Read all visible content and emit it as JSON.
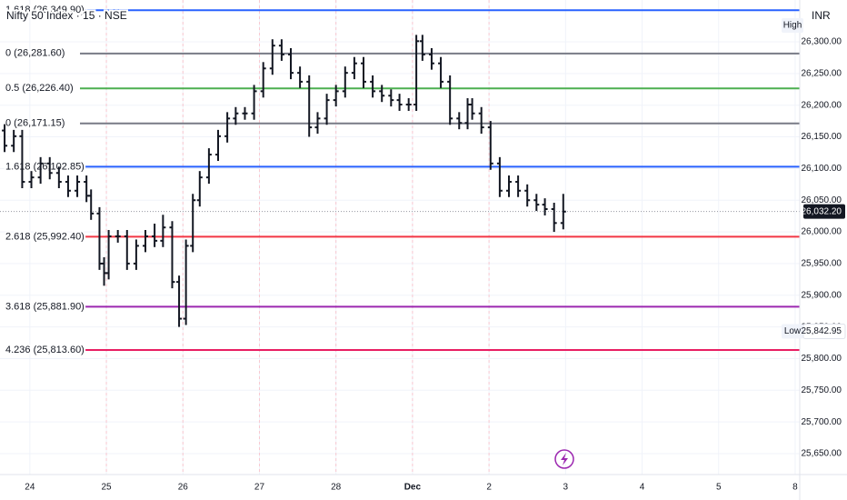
{
  "chart_data": {
    "type": "ohlc",
    "title": "Nifty 50 Index · 15 · NSE",
    "currency": "INR",
    "color": "#131722",
    "xlim": [
      -0.39,
      10.06
    ],
    "xticks": [
      {
        "value": 0,
        "label": "24"
      },
      {
        "value": 1,
        "label": "25"
      },
      {
        "value": 2,
        "label": "26"
      },
      {
        "value": 3,
        "label": "27"
      },
      {
        "value": 4,
        "label": "28"
      },
      {
        "value": 5,
        "label": "Dec"
      },
      {
        "value": 6,
        "label": "2"
      },
      {
        "value": 7,
        "label": "3"
      },
      {
        "value": 8,
        "label": "4"
      },
      {
        "value": 9,
        "label": "5"
      },
      {
        "value": 10,
        "label": "8"
      }
    ],
    "ylim": [
      25617,
      26366
    ],
    "yticks": [
      {
        "value": 26300,
        "label": "26,300.00"
      },
      {
        "value": 26250,
        "label": "26,250.00"
      },
      {
        "value": 26200,
        "label": "26,200.00"
      },
      {
        "value": 26150,
        "label": "26,150.00"
      },
      {
        "value": 26100,
        "label": "26,100.00"
      },
      {
        "value": 26050,
        "label": "26,050.00"
      },
      {
        "value": 26000,
        "label": "26,000.00"
      },
      {
        "value": 25950,
        "label": "25,950.00"
      },
      {
        "value": 25900,
        "label": "25,900.00"
      },
      {
        "value": 25850,
        "label": "25,850.00"
      },
      {
        "value": 25800,
        "label": "25,800.00"
      },
      {
        "value": 25750,
        "label": "25,750.00"
      },
      {
        "value": 25700,
        "label": "25,700.00"
      },
      {
        "value": 25650,
        "label": "25,650.00"
      }
    ],
    "grid": true,
    "session_lines": [
      1,
      2,
      3,
      4,
      5,
      6
    ],
    "x": [
      -0.33,
      -0.21,
      -0.1,
      0.02,
      0.14,
      0.26,
      0.38,
      0.5,
      0.62,
      0.74,
      0.8,
      0.91,
      0.97,
      1.03,
      1.15,
      1.27,
      1.39,
      1.51,
      1.63,
      1.74,
      1.86,
      1.95,
      2.04,
      2.13,
      2.22,
      2.34,
      2.46,
      2.58,
      2.69,
      2.81,
      2.93,
      3.05,
      3.17,
      3.29,
      3.41,
      3.53,
      3.65,
      3.76,
      3.88,
      4.0,
      4.12,
      4.24,
      4.36,
      4.48,
      4.6,
      4.72,
      4.83,
      4.95,
      5.05,
      5.13,
      5.25,
      5.37,
      5.49,
      5.61,
      5.72,
      5.78,
      5.9,
      6.02,
      6.14,
      6.26,
      6.38,
      6.5,
      6.62,
      6.73,
      6.85,
      6.97
    ],
    "open": [
      26160,
      26136,
      26151,
      26079,
      26086,
      26108,
      26093,
      26079,
      26065,
      26079,
      26057,
      26029,
      25950,
      25935,
      25993,
      25993,
      25950,
      25978,
      25993,
      25986,
      26007,
      25921,
      25863,
      25978,
      26050,
      26086,
      26122,
      26151,
      26179,
      26187,
      26187,
      26222,
      26258,
      26294,
      26280,
      26251,
      26237,
      26165,
      26179,
      26208,
      26222,
      26251,
      26266,
      26237,
      26222,
      26215,
      26208,
      26201,
      26201,
      26301,
      26280,
      26266,
      26237,
      26179,
      26172,
      26201,
      26187,
      26165,
      26108,
      26065,
      26079,
      26065,
      26050,
      26043,
      26036,
      26014
    ],
    "high": [
      26170,
      26161,
      26161,
      26096,
      26118,
      26118,
      26103,
      26089,
      26089,
      26089,
      26067,
      26039,
      25960,
      26003,
      26003,
      26003,
      25988,
      26003,
      26013,
      26027,
      26017,
      25931,
      25988,
      26060,
      26096,
      26132,
      26161,
      26189,
      26197,
      26197,
      26232,
      26268,
      26304,
      26304,
      26290,
      26261,
      26247,
      26189,
      26218,
      26232,
      26261,
      26276,
      26276,
      26247,
      26232,
      26225,
      26218,
      26211,
      26311,
      26311,
      26290,
      26276,
      26247,
      26189,
      26211,
      26211,
      26197,
      26175,
      26118,
      26089,
      26089,
      26075,
      26060,
      26053,
      26046,
      26060
    ],
    "low": [
      26126,
      26126,
      26069,
      26069,
      26076,
      26083,
      26069,
      26055,
      26055,
      26047,
      26019,
      25940,
      25915,
      25925,
      25983,
      25940,
      25940,
      25968,
      25976,
      25976,
      25911,
      25850,
      25853,
      25968,
      26040,
      26076,
      26112,
      26141,
      26169,
      26177,
      26177,
      26212,
      26248,
      26270,
      26241,
      26227,
      26150,
      26155,
      26169,
      26198,
      26212,
      26241,
      26227,
      26212,
      26205,
      26198,
      26191,
      26191,
      26191,
      26270,
      26256,
      26227,
      26169,
      26162,
      26162,
      26177,
      26155,
      26098,
      26055,
      26055,
      26055,
      26040,
      26033,
      26026,
      26000,
      26004
    ],
    "close": [
      26136,
      26151,
      26079,
      26086,
      26108,
      26093,
      26079,
      26065,
      26079,
      26057,
      26029,
      25950,
      25935,
      25993,
      25993,
      25950,
      25978,
      25993,
      25986,
      26007,
      25921,
      25863,
      25978,
      26050,
      26086,
      26122,
      26151,
      26179,
      26187,
      26187,
      26222,
      26258,
      26294,
      26280,
      26251,
      26237,
      26165,
      26179,
      26208,
      26222,
      26251,
      26266,
      26237,
      26222,
      26215,
      26208,
      26201,
      26201,
      26301,
      26280,
      26266,
      26237,
      26179,
      26172,
      26201,
      26187,
      26165,
      26108,
      26065,
      26079,
      26065,
      26050,
      26043,
      26036,
      26014,
      26032
    ],
    "fib_levels": [
      {
        "label": "1.618 (26,349.90)",
        "value": 26349.9,
        "color": "#2962ff"
      },
      {
        "label": "0 (26,281.60)",
        "value": 26281.6,
        "color": "#787b86"
      },
      {
        "label": "0.5 (26,226.40)",
        "value": 26226.4,
        "color": "#4caf50"
      },
      {
        "label": "0 (26,171.15)",
        "value": 26171.15,
        "color": "#787b86"
      },
      {
        "label": "1.618 (26,102.85)",
        "value": 26102.85,
        "color": "#2962ff"
      },
      {
        "label": "2.618 (25,992.40)",
        "value": 25992.4,
        "color": "#f23645"
      },
      {
        "label": "3.618 (25,881.90)",
        "value": 25881.9,
        "color": "#9c27b0"
      },
      {
        "label": "4.236 (25,813.60)",
        "value": 25813.6,
        "color": "#e91e63"
      }
    ],
    "last_price": {
      "value": 26032.2,
      "label": "26,032.20"
    },
    "high_tag": "High",
    "low_marker": {
      "tag": "Low",
      "value": 25842.95,
      "label": "25,842.95"
    }
  }
}
